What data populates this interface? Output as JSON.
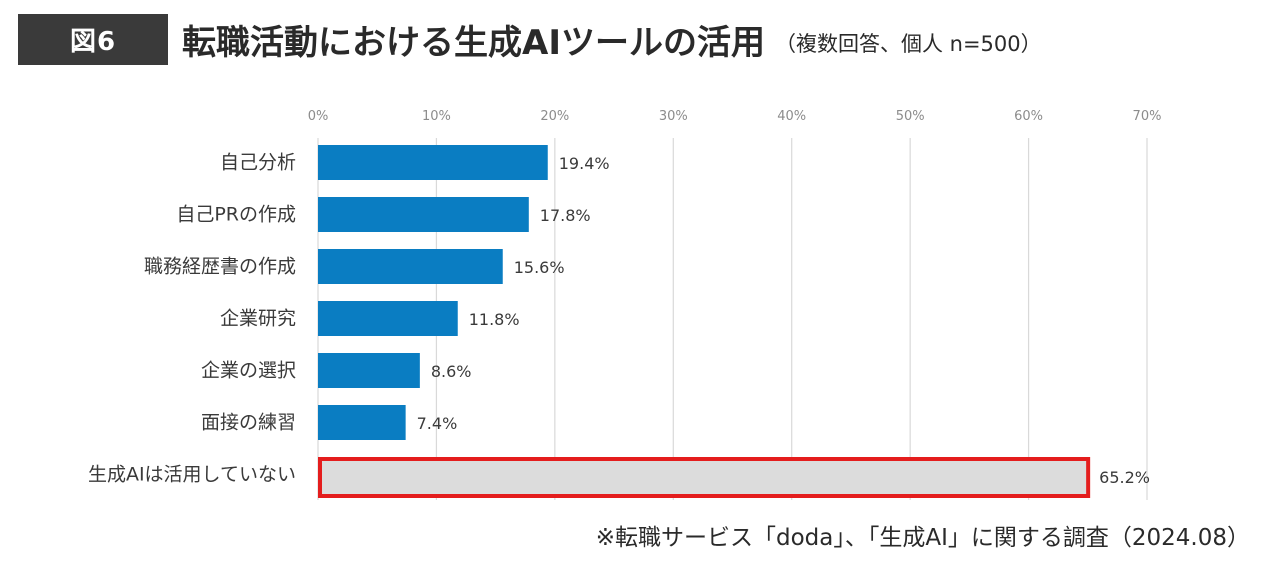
{
  "figure": {
    "badge": "図6",
    "title": "転職活動における生成AIツールの活用",
    "subtitle": "（複数回答、個人 n=500）",
    "source": "※転職サービス「doda」、「生成AI」に関する調査（2024.08）"
  },
  "colors": {
    "bar": "#0a7dc2",
    "highlight_fill": "#dcdcdc",
    "highlight_border": "#e41d1d",
    "grid": "#d9d9d9",
    "tick_text": "#8c8c8c",
    "label_text": "#3a3a3a"
  },
  "chart_data": {
    "type": "bar",
    "orientation": "horizontal",
    "title": "転職活動における生成AIツールの活用",
    "xlabel": "",
    "ylabel": "",
    "xlim": [
      0,
      70
    ],
    "grid": true,
    "x_ticks": [
      0,
      10,
      20,
      30,
      40,
      50,
      60,
      70
    ],
    "x_tick_labels": [
      "0%",
      "10%",
      "20%",
      "30%",
      "40%",
      "50%",
      "60%",
      "70%"
    ],
    "categories": [
      "自己分析",
      "自己PRの作成",
      "職務経歴書の作成",
      "企業研究",
      "企業の選択",
      "面接の練習",
      "生成AIは活用していない"
    ],
    "values": [
      19.4,
      17.8,
      15.6,
      11.8,
      8.6,
      7.4,
      65.2
    ],
    "data_labels": [
      "19.4%",
      "17.8%",
      "15.6%",
      "11.8%",
      "8.6%",
      "7.4%",
      "65.2%"
    ],
    "highlighted": [
      false,
      false,
      false,
      false,
      false,
      false,
      true
    ]
  }
}
